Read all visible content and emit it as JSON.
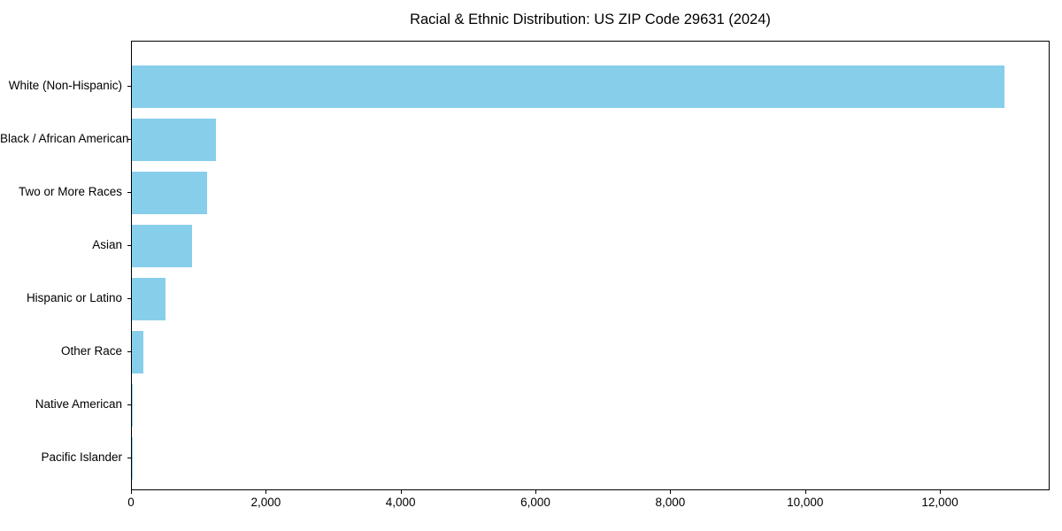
{
  "chart_data": {
    "type": "bar",
    "orientation": "horizontal",
    "title": "Racial & Ethnic Distribution: US ZIP Code 29631 (2024)",
    "categories": [
      "White (Non-Hispanic)",
      "Black / African American",
      "Two or More Races",
      "Asian",
      "Hispanic or Latino",
      "Other Race",
      "Native American",
      "Pacific Islander"
    ],
    "values": [
      12970,
      1250,
      1115,
      890,
      500,
      170,
      15,
      2
    ],
    "bar_color": "#87CEEB",
    "xlabel": "",
    "ylabel": "",
    "xlim": [
      0,
      13627
    ],
    "x_ticks": [
      0,
      2000,
      4000,
      6000,
      8000,
      10000,
      12000
    ],
    "x_tick_labels": [
      "0",
      "2,000",
      "4,000",
      "6,000",
      "8,000",
      "10,000",
      "12,000"
    ],
    "grid": false,
    "legend": null,
    "plot_border_color": "#000000",
    "background_color": "#ffffff"
  }
}
